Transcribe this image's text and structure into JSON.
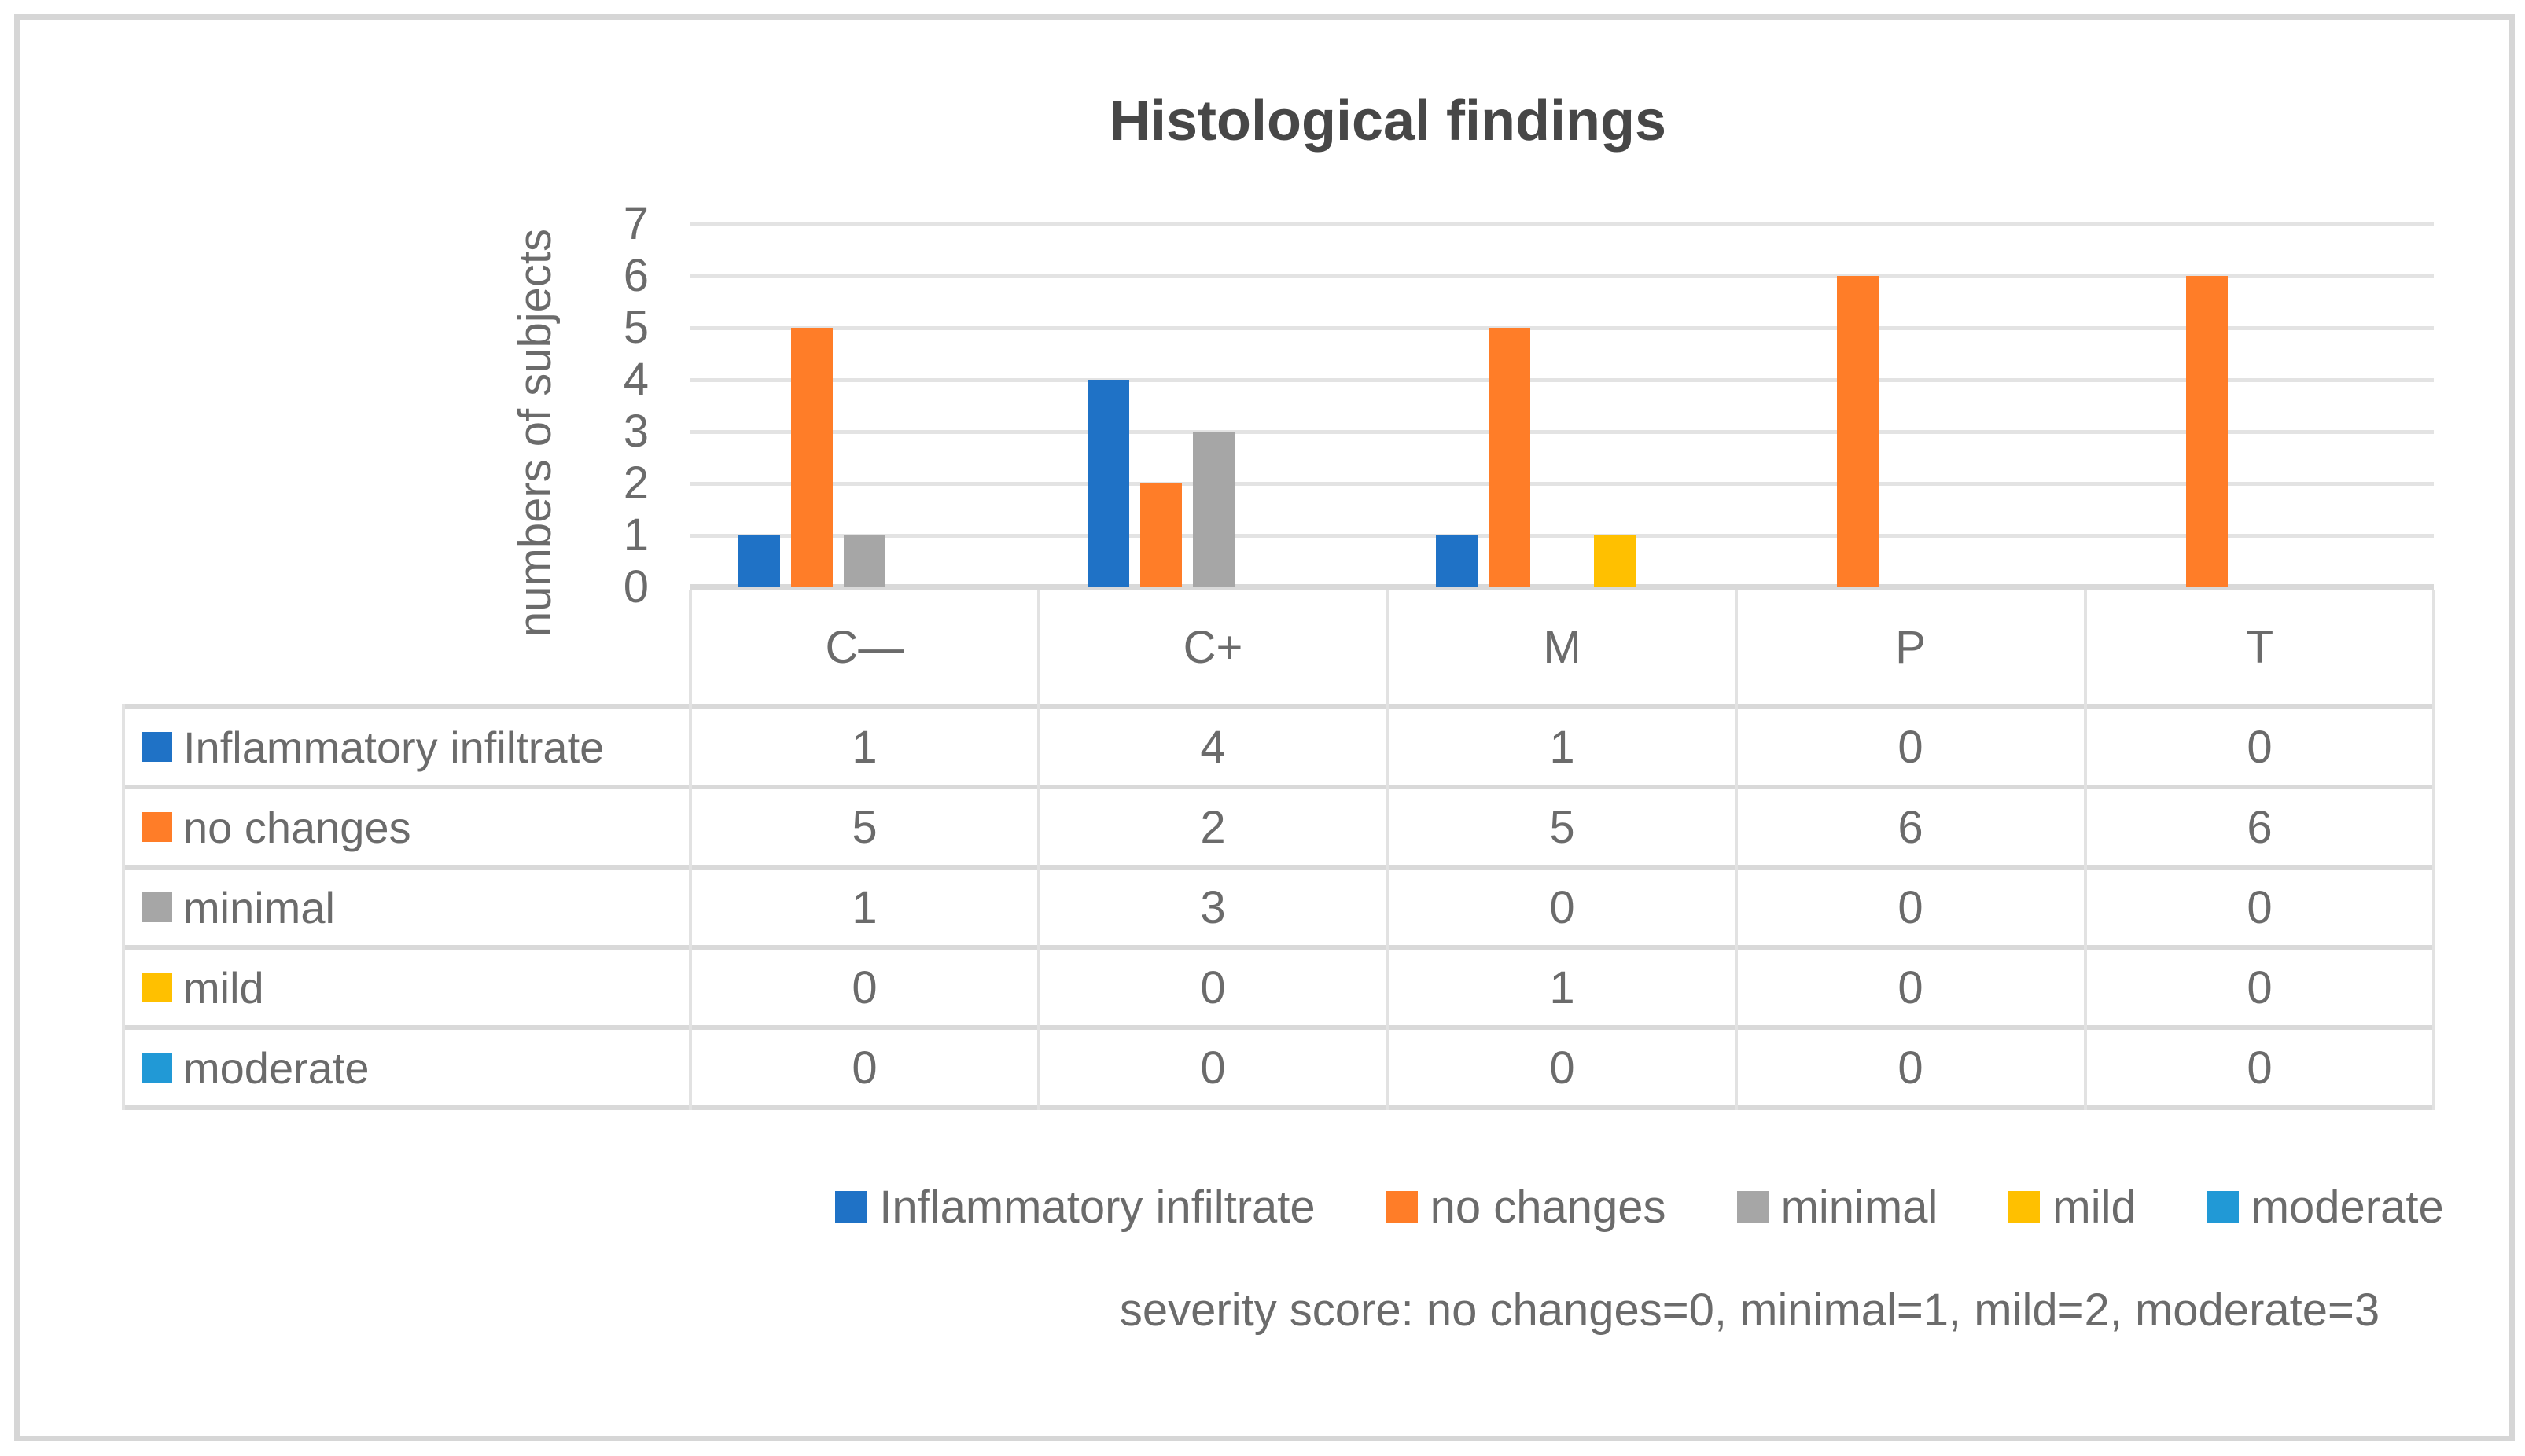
{
  "chart_data": {
    "type": "bar",
    "title": "Histological findings",
    "xlabel": "",
    "ylabel": "numbers of subjects",
    "ylim": [
      0,
      7
    ],
    "yticks": [
      0,
      1,
      2,
      3,
      4,
      5,
      6,
      7
    ],
    "grid": true,
    "legend_position": "bottom",
    "categories": [
      "C—",
      "C+",
      "M",
      "P",
      "T"
    ],
    "series": [
      {
        "name": "Inflammatory infiltrate",
        "color": "#1f72c6",
        "values": [
          1,
          4,
          1,
          0,
          0
        ]
      },
      {
        "name": "no changes",
        "color": "#ff7d28",
        "values": [
          5,
          2,
          5,
          6,
          6
        ]
      },
      {
        "name": "minimal",
        "color": "#a6a6a6",
        "values": [
          1,
          3,
          0,
          0,
          0
        ]
      },
      {
        "name": "mild",
        "color": "#ffc000",
        "values": [
          0,
          0,
          1,
          0,
          0
        ]
      },
      {
        "name": "moderate",
        "color": "#2199d6",
        "values": [
          0,
          0,
          0,
          0,
          0
        ]
      }
    ],
    "data_table": {
      "shown": true,
      "legend_keys": true
    },
    "footnote": "severity score: no changes=0, minimal=1, mild=2, moderate=3"
  }
}
